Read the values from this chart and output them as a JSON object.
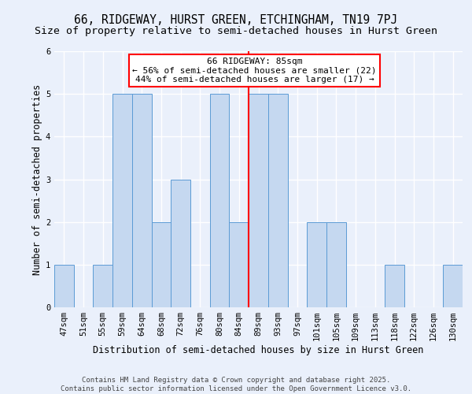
{
  "title": "66, RIDGEWAY, HURST GREEN, ETCHINGHAM, TN19 7PJ",
  "subtitle": "Size of property relative to semi-detached houses in Hurst Green",
  "xlabel": "Distribution of semi-detached houses by size in Hurst Green",
  "ylabel": "Number of semi-detached properties",
  "categories": [
    "47sqm",
    "51sqm",
    "55sqm",
    "59sqm",
    "64sqm",
    "68sqm",
    "72sqm",
    "76sqm",
    "80sqm",
    "84sqm",
    "89sqm",
    "93sqm",
    "97sqm",
    "101sqm",
    "105sqm",
    "109sqm",
    "113sqm",
    "118sqm",
    "122sqm",
    "126sqm",
    "130sqm"
  ],
  "values": [
    1,
    0,
    1,
    5,
    5,
    2,
    3,
    0,
    5,
    2,
    5,
    5,
    0,
    2,
    2,
    0,
    0,
    1,
    0,
    0,
    1
  ],
  "bar_color": "#c5d8f0",
  "bar_edge_color": "#5b9bd5",
  "ylim": [
    0,
    6
  ],
  "yticks": [
    0,
    1,
    2,
    3,
    4,
    5,
    6
  ],
  "property_line_x": 9.5,
  "annotation_title": "66 RIDGEWAY: 85sqm",
  "annotation_line1": "← 56% of semi-detached houses are smaller (22)",
  "annotation_line2": "44% of semi-detached houses are larger (17) →",
  "footer_line1": "Contains HM Land Registry data © Crown copyright and database right 2025.",
  "footer_line2": "Contains public sector information licensed under the Open Government Licence v3.0.",
  "background_color": "#eaf0fb",
  "grid_color": "#ffffff",
  "title_fontsize": 10.5,
  "subtitle_fontsize": 9.5,
  "axis_label_fontsize": 8.5,
  "tick_fontsize": 7.5,
  "annotation_fontsize": 8,
  "footer_fontsize": 6.5
}
